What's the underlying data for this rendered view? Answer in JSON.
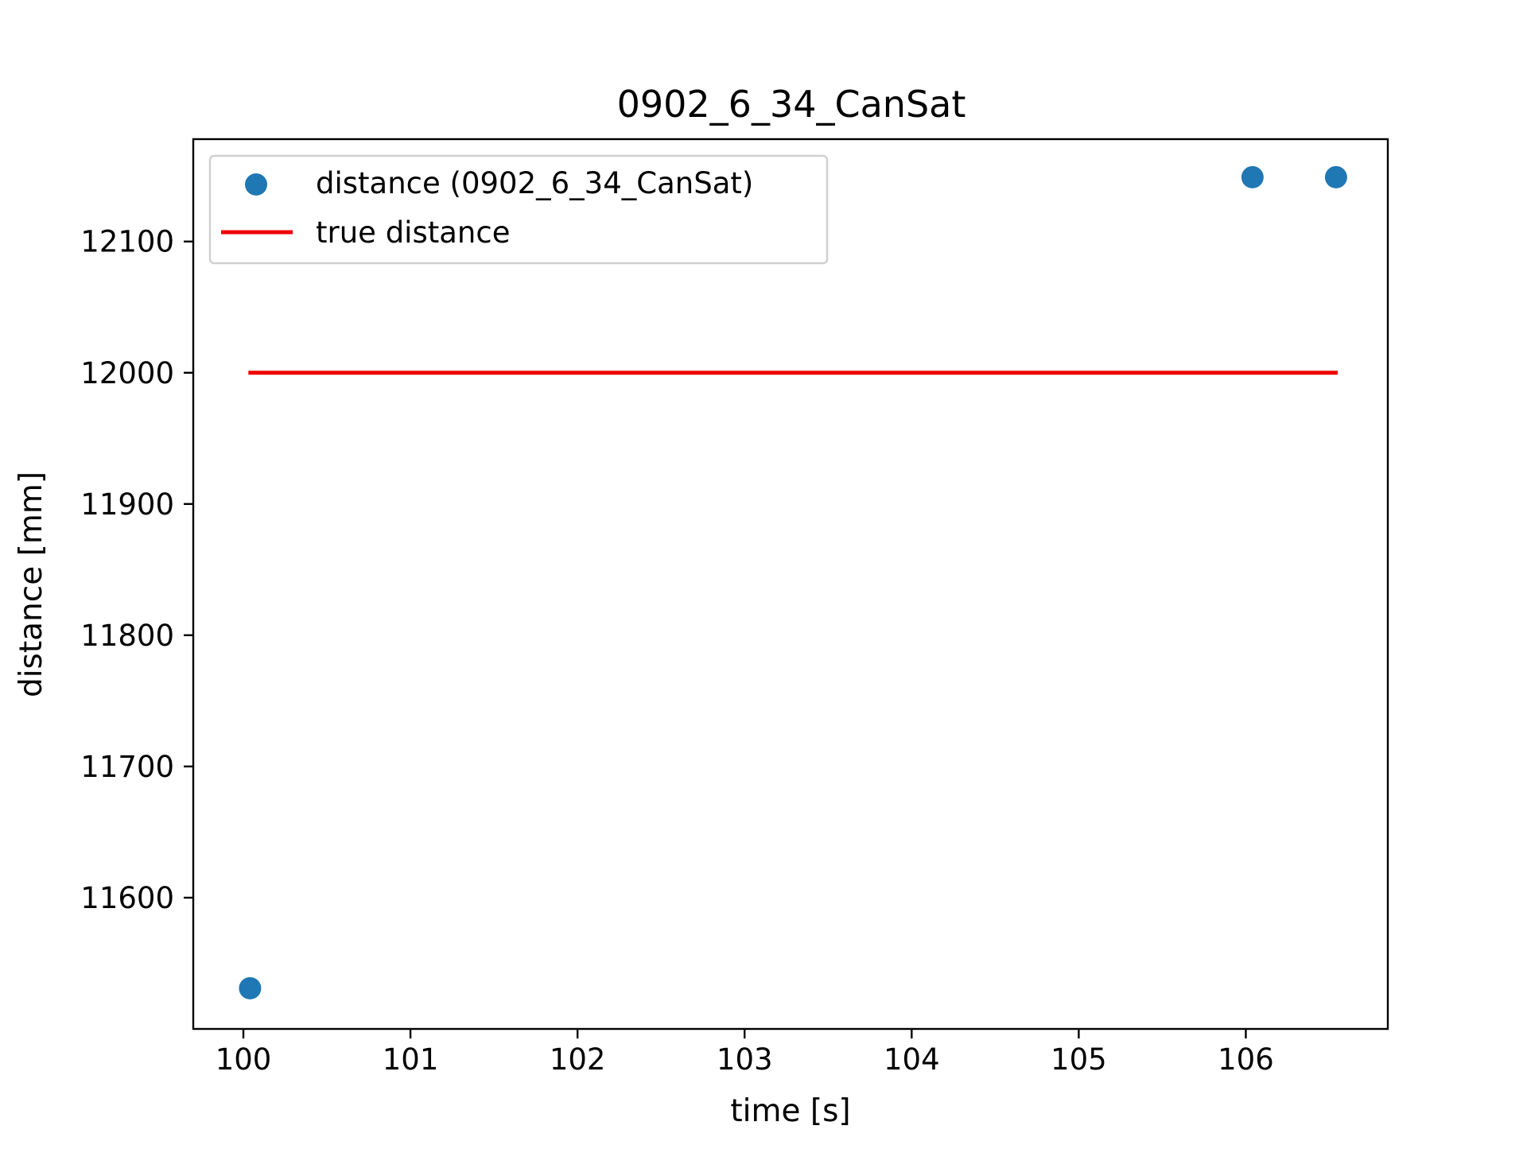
{
  "chart_data": {
    "type": "scatter",
    "title": "0902_6_34_CanSat",
    "xlabel": "time [s]",
    "ylabel": "distance [mm]",
    "xlim": [
      99.7,
      106.85
    ],
    "ylim": [
      11500,
      12178
    ],
    "xticks": [
      100,
      101,
      102,
      103,
      104,
      105,
      106
    ],
    "yticks": [
      11600,
      11700,
      11800,
      11900,
      12000,
      12100
    ],
    "grid": false,
    "legend_position": "top-left",
    "series": [
      {
        "name": "distance (0902_6_34_CanSat)",
        "kind": "scatter",
        "color": "#1f77b4",
        "points": [
          {
            "x": 100.04,
            "y": 11531
          },
          {
            "x": 106.04,
            "y": 12149
          },
          {
            "x": 106.54,
            "y": 12149
          }
        ]
      },
      {
        "name": "true distance",
        "kind": "line",
        "color": "#ee0000",
        "points": [
          {
            "x": 100.03,
            "y": 12000
          },
          {
            "x": 106.55,
            "y": 12000
          }
        ]
      }
    ]
  }
}
